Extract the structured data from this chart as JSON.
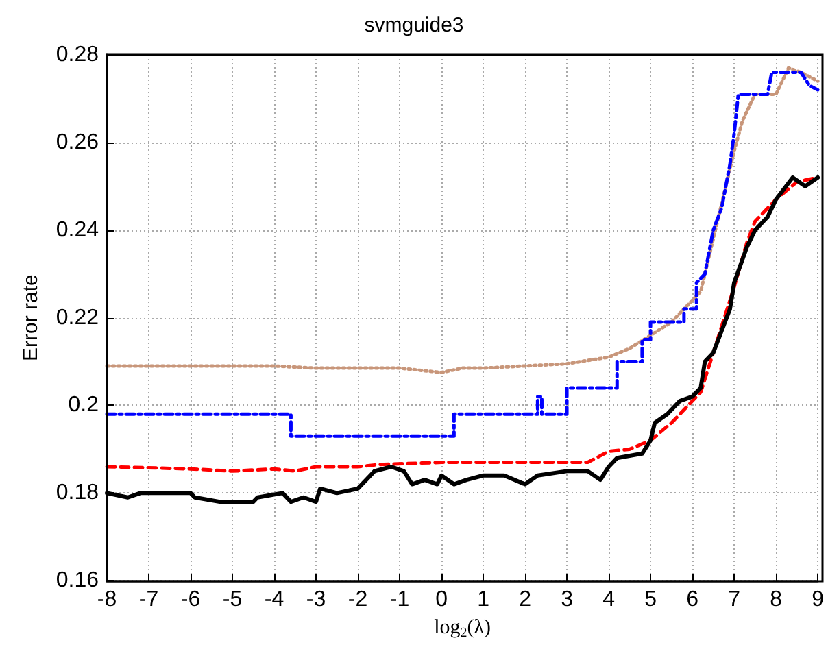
{
  "chart_data": {
    "type": "line",
    "title": "svmguide3",
    "xlabel": "log$_{2}$(λ)",
    "ylabel": "Error rate",
    "xlim": [
      -8,
      9
    ],
    "xticks": [
      -8,
      -7,
      -6,
      -5,
      -4,
      -3,
      -2,
      -1,
      0,
      1,
      2,
      3,
      4,
      5,
      6,
      7,
      8,
      9
    ],
    "ylim": [
      0.16,
      0.28
    ],
    "yticks": [
      0.16,
      0.18,
      0.2,
      0.22,
      0.24,
      0.26,
      0.28
    ],
    "grid": true,
    "marker": "none",
    "series": [
      {
        "color": "#c8967a",
        "line_style": "dotted",
        "x": [
          -8,
          -4,
          -3,
          -2,
          -1,
          0,
          0.5,
          1,
          2,
          3,
          4,
          4.5,
          5,
          5.5,
          6,
          6.2,
          6.5,
          7,
          7.2,
          7.5,
          8,
          8.3,
          8.6,
          9
        ],
        "values": [
          0.209,
          0.209,
          0.2085,
          0.2085,
          0.2085,
          0.2075,
          0.2085,
          0.2085,
          0.209,
          0.2095,
          0.211,
          0.213,
          0.216,
          0.219,
          0.224,
          0.226,
          0.238,
          0.258,
          0.265,
          0.271,
          0.271,
          0.277,
          0.276,
          0.274
        ]
      },
      {
        "color": "#0000ff",
        "line_style": "dashdot",
        "x": [
          -8,
          -3.6,
          -3.6,
          0.3,
          0.3,
          2.3,
          2.3,
          2.4,
          2.4,
          3.0,
          3.0,
          4.2,
          4.2,
          4.8,
          4.8,
          5.0,
          5.0,
          5.8,
          5.8,
          6.1,
          6.1,
          6.3,
          6.5,
          6.7,
          6.9,
          7.0,
          7.1,
          7.8,
          7.9,
          8.6,
          8.8,
          9
        ],
        "values": [
          0.198,
          0.198,
          0.193,
          0.193,
          0.198,
          0.198,
          0.202,
          0.202,
          0.198,
          0.198,
          0.204,
          0.204,
          0.21,
          0.21,
          0.215,
          0.215,
          0.219,
          0.219,
          0.222,
          0.222,
          0.228,
          0.23,
          0.24,
          0.245,
          0.255,
          0.262,
          0.271,
          0.271,
          0.276,
          0.276,
          0.273,
          0.272
        ]
      },
      {
        "color": "#ff0000",
        "line_style": "dashed",
        "x": [
          -8,
          -6,
          -5,
          -4,
          -3.5,
          -3,
          -2,
          -1.5,
          0,
          1,
          2,
          3,
          3.5,
          4,
          4.5,
          5,
          5.5,
          6,
          6.2,
          6.5,
          7,
          7.3,
          7.5,
          8,
          8.5,
          9
        ],
        "values": [
          0.186,
          0.1855,
          0.185,
          0.1855,
          0.185,
          0.186,
          0.186,
          0.1865,
          0.187,
          0.187,
          0.187,
          0.187,
          0.187,
          0.1895,
          0.19,
          0.192,
          0.196,
          0.201,
          0.203,
          0.212,
          0.227,
          0.237,
          0.242,
          0.247,
          0.251,
          0.252
        ]
      },
      {
        "color": "#000000",
        "line_style": "solid",
        "x": [
          -8,
          -7.5,
          -7.2,
          -6,
          -5.9,
          -5.3,
          -4.5,
          -4.4,
          -3.8,
          -3.6,
          -3.3,
          -3,
          -2.9,
          -2.5,
          -2,
          -1.8,
          -1.6,
          -1.2,
          -0.9,
          -0.7,
          -0.4,
          -0.1,
          0,
          0.3,
          0.6,
          1,
          1.5,
          2,
          2.3,
          3,
          3.5,
          3.8,
          4,
          4.2,
          4.8,
          5,
          5.1,
          5.4,
          5.7,
          6,
          6.2,
          6.3,
          6.5,
          6.7,
          6.9,
          7,
          7.3,
          7.5,
          7.8,
          8,
          8.4,
          8.7,
          9
        ],
        "values": [
          0.18,
          0.179,
          0.18,
          0.18,
          0.179,
          0.178,
          0.178,
          0.179,
          0.18,
          0.178,
          0.179,
          0.178,
          0.181,
          0.18,
          0.181,
          0.183,
          0.185,
          0.186,
          0.185,
          0.182,
          0.183,
          0.182,
          0.184,
          0.182,
          0.183,
          0.184,
          0.184,
          0.182,
          0.184,
          0.185,
          0.185,
          0.183,
          0.186,
          0.188,
          0.189,
          0.192,
          0.196,
          0.198,
          0.201,
          0.202,
          0.204,
          0.21,
          0.212,
          0.217,
          0.222,
          0.228,
          0.236,
          0.24,
          0.243,
          0.247,
          0.252,
          0.25,
          0.252
        ]
      }
    ]
  }
}
